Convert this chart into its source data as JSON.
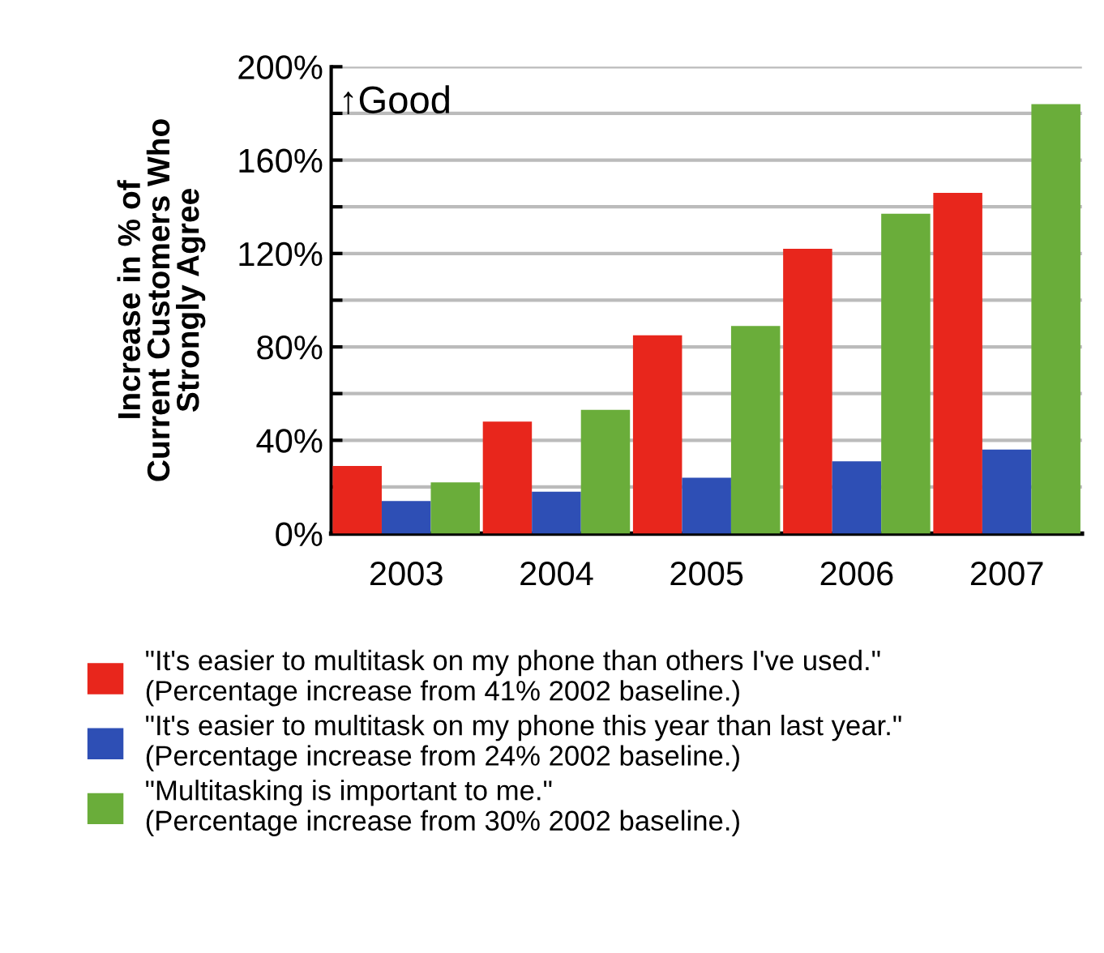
{
  "chart_data": {
    "type": "bar",
    "ylabel": "Increase in % of\nCurrent Customers Who\nStrongly Agree",
    "categories": [
      "2003",
      "2004",
      "2005",
      "2006",
      "2007"
    ],
    "series": [
      {
        "name": "\"It's easier to multitask on my phone than others I've used.\"\n(Percentage increase from 41% 2002 baseline.)",
        "color": "#e8261c",
        "values": [
          29,
          48,
          85,
          122,
          146
        ]
      },
      {
        "name": "\"It's easier to multitask on my phone this year than last year.\"\n(Percentage increase from 24% 2002 baseline.)",
        "color": "#2e4fb5",
        "values": [
          14,
          18,
          24,
          31,
          36
        ]
      },
      {
        "name": "\"Multitasking is important to me.\"\n(Percentage increase from 30% 2002 baseline.)",
        "color": "#6aad3a",
        "values": [
          22,
          53,
          89,
          137,
          184
        ]
      }
    ],
    "ylim": [
      0,
      200
    ],
    "yticks": [
      {
        "value": 0,
        "label": "0%"
      },
      {
        "value": 20,
        "label": null
      },
      {
        "value": 40,
        "label": "40%"
      },
      {
        "value": 60,
        "label": null
      },
      {
        "value": 80,
        "label": "80%"
      },
      {
        "value": 100,
        "label": null
      },
      {
        "value": 120,
        "label": "120%"
      },
      {
        "value": 140,
        "label": null
      },
      {
        "value": 160,
        "label": "160%"
      },
      {
        "value": 180,
        "label": null
      },
      {
        "value": 200,
        "label": "200%"
      }
    ],
    "grid": "y",
    "legend": "bottom",
    "annotations": [
      "↑Good"
    ]
  }
}
